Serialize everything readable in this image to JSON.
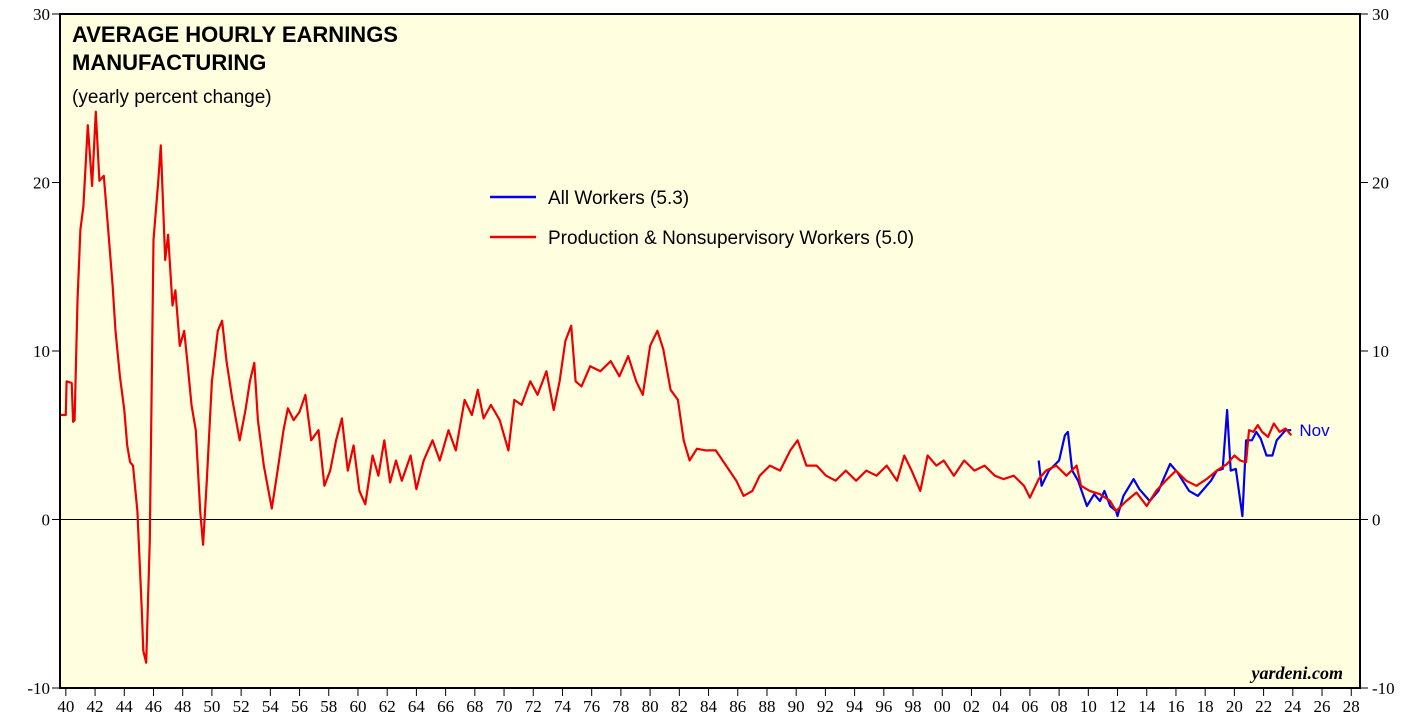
{
  "chart_data": {
    "type": "line",
    "title": [
      "AVERAGE HOURLY EARNINGS",
      "MANUFACTURING"
    ],
    "subtitle": "(yearly percent change)",
    "source": "yardeni.com",
    "end_label": "Nov",
    "background": "#ffffe0",
    "xlim": [
      1939.6,
      2028.6
    ],
    "ylim": [
      -10,
      30
    ],
    "yticks": [
      -10,
      0,
      10,
      20,
      30
    ],
    "xticks": [
      {
        "value": 1940,
        "label": "40"
      },
      {
        "value": 1942,
        "label": "42"
      },
      {
        "value": 1944,
        "label": "44"
      },
      {
        "value": 1946,
        "label": "46"
      },
      {
        "value": 1948,
        "label": "48"
      },
      {
        "value": 1950,
        "label": "50"
      },
      {
        "value": 1952,
        "label": "52"
      },
      {
        "value": 1954,
        "label": "54"
      },
      {
        "value": 1956,
        "label": "56"
      },
      {
        "value": 1958,
        "label": "58"
      },
      {
        "value": 1960,
        "label": "60"
      },
      {
        "value": 1962,
        "label": "62"
      },
      {
        "value": 1964,
        "label": "64"
      },
      {
        "value": 1966,
        "label": "66"
      },
      {
        "value": 1968,
        "label": "68"
      },
      {
        "value": 1970,
        "label": "70"
      },
      {
        "value": 1972,
        "label": "72"
      },
      {
        "value": 1974,
        "label": "74"
      },
      {
        "value": 1976,
        "label": "76"
      },
      {
        "value": 1978,
        "label": "78"
      },
      {
        "value": 1980,
        "label": "80"
      },
      {
        "value": 1982,
        "label": "82"
      },
      {
        "value": 1984,
        "label": "84"
      },
      {
        "value": 1986,
        "label": "86"
      },
      {
        "value": 1988,
        "label": "88"
      },
      {
        "value": 1990,
        "label": "90"
      },
      {
        "value": 1992,
        "label": "92"
      },
      {
        "value": 1994,
        "label": "94"
      },
      {
        "value": 1996,
        "label": "96"
      },
      {
        "value": 1998,
        "label": "98"
      },
      {
        "value": 2000,
        "label": "00"
      },
      {
        "value": 2002,
        "label": "02"
      },
      {
        "value": 2004,
        "label": "04"
      },
      {
        "value": 2006,
        "label": "06"
      },
      {
        "value": 2008,
        "label": "08"
      },
      {
        "value": 2010,
        "label": "10"
      },
      {
        "value": 2012,
        "label": "12"
      },
      {
        "value": 2014,
        "label": "14"
      },
      {
        "value": 2016,
        "label": "16"
      },
      {
        "value": 2018,
        "label": "18"
      },
      {
        "value": 2020,
        "label": "20"
      },
      {
        "value": 2022,
        "label": "22"
      },
      {
        "value": 2024,
        "label": "24"
      },
      {
        "value": 2026,
        "label": "26"
      },
      {
        "value": 2028,
        "label": "28"
      }
    ],
    "series": [
      {
        "name": "All Workers (5.3)",
        "color": "#0000ee",
        "x": [
          2006.6,
          2006.8,
          2007.3,
          2008,
          2008.4,
          2008.6,
          2008.9,
          2009.3,
          2009.9,
          2010.4,
          2010.8,
          2011.1,
          2011.5,
          2011.9,
          2012,
          2012.4,
          2013.1,
          2013.5,
          2014.2,
          2014.8,
          2015.1,
          2015.6,
          2016.1,
          2016.9,
          2017.5,
          2018.4,
          2018.8,
          2019.2,
          2019.5,
          2019.75,
          2020.1,
          2020.55,
          2020.8,
          2021.2,
          2021.5,
          2021.8,
          2022.2,
          2022.6,
          2022.9,
          2023.2,
          2023.5,
          2023.9
        ],
        "values": [
          3.5,
          2,
          2.9,
          3.5,
          5,
          5.2,
          2.9,
          2.3,
          0.8,
          1.5,
          1.1,
          1.7,
          0.8,
          0.5,
          0.2,
          1.4,
          2.4,
          1.8,
          1.1,
          1.7,
          2.3,
          3.3,
          2.8,
          1.7,
          1.4,
          2.3,
          2.9,
          3,
          6.5,
          2.9,
          3,
          0.2,
          4.7,
          4.7,
          5.2,
          4.8,
          3.8,
          3.8,
          4.7,
          5,
          5.3,
          5.3
        ]
      },
      {
        "name": "Production & Nonsupervisory Workers (5.0)",
        "color": "#ee0000",
        "x": [
          1939.6,
          1940,
          1940.05,
          1940.4,
          1940.5,
          1940.6,
          1940.8,
          1941,
          1941.2,
          1941.5,
          1941.8,
          1942.05,
          1942.3,
          1942.6,
          1942.9,
          1943.2,
          1943.4,
          1943.7,
          1944,
          1944.2,
          1944.4,
          1944.6,
          1944.9,
          1945.2,
          1945.3,
          1945.5,
          1945.75,
          1946,
          1946.3,
          1946.5,
          1946.8,
          1947,
          1947.3,
          1947.5,
          1947.8,
          1948.1,
          1948.35,
          1948.6,
          1948.9,
          1949.2,
          1949.4,
          1949.65,
          1950,
          1950.4,
          1950.7,
          1951,
          1951.4,
          1951.9,
          1952.3,
          1952.6,
          1952.9,
          1953.15,
          1953.55,
          1954.1,
          1954.5,
          1954.9,
          1955.2,
          1955.6,
          1956,
          1956.4,
          1956.8,
          1957.3,
          1957.7,
          1958.1,
          1958.5,
          1958.9,
          1959.3,
          1959.7,
          1960.1,
          1960.5,
          1961,
          1961.4,
          1961.8,
          1962.2,
          1962.6,
          1963,
          1963.6,
          1964,
          1964.5,
          1965.1,
          1965.6,
          1966.2,
          1966.7,
          1967.3,
          1967.8,
          1968.2,
          1968.6,
          1969.1,
          1969.7,
          1970.3,
          1970.7,
          1971.2,
          1971.8,
          1972.3,
          1972.9,
          1973.4,
          1973.8,
          1974.2,
          1974.6,
          1974.9,
          1975.3,
          1975.9,
          1976.6,
          1977.3,
          1977.9,
          1978.5,
          1979.05,
          1979.5,
          1980,
          1980.5,
          1980.9,
          1981.4,
          1981.9,
          1982.3,
          1982.7,
          1983.2,
          1983.8,
          1984.5,
          1985.2,
          1985.9,
          1986.4,
          1987,
          1987.5,
          1988.2,
          1988.9,
          1989.6,
          1990.1,
          1990.7,
          1991.4,
          1992.05,
          1992.7,
          1993.4,
          1994.1,
          1994.8,
          1995.5,
          1996.2,
          1996.9,
          1997.4,
          1997.9,
          1998.5,
          1999,
          1999.6,
          2000.1,
          2000.8,
          2001.5,
          2002.2,
          2002.9,
          2003.6,
          2004.2,
          2004.9,
          2005.6,
          2006,
          2006.6,
          2007.1,
          2007.8,
          2008.5,
          2009.2,
          2009.5,
          2010.1,
          2010.8,
          2011.5,
          2011.9,
          2012.6,
          2013.3,
          2014,
          2014.65,
          2015.3,
          2016,
          2016.7,
          2017.4,
          2018.1,
          2018.8,
          2019.5,
          2020,
          2020.4,
          2020.8,
          2021,
          2021.3,
          2021.6,
          2021.9,
          2022.3,
          2022.7,
          2023.1,
          2023.5,
          2023.9
        ],
        "values": [
          6.2,
          6.2,
          8.2,
          8.1,
          5.8,
          5.9,
          13,
          17.2,
          18.6,
          23.4,
          19.8,
          24.2,
          20.1,
          20.4,
          17.2,
          13.9,
          11.2,
          8.5,
          6.5,
          4.4,
          3.4,
          3.2,
          0.5,
          -5.4,
          -7.8,
          -8.5,
          -1.2,
          16.6,
          19.8,
          22.2,
          15.4,
          16.9,
          12.7,
          13.6,
          10.3,
          11.2,
          9.1,
          6.8,
          5.3,
          0.5,
          -1.5,
          2.3,
          8.2,
          11.2,
          11.8,
          9.4,
          7.1,
          4.7,
          6.5,
          8.2,
          9.3,
          5.9,
          3.2,
          0.65,
          2.9,
          5.3,
          6.6,
          5.9,
          6.4,
          7.4,
          4.7,
          5.3,
          2,
          2.9,
          4.7,
          6,
          2.9,
          4.4,
          1.7,
          0.9,
          3.8,
          2.6,
          4.7,
          2.2,
          3.5,
          2.3,
          3.8,
          1.8,
          3.5,
          4.7,
          3.5,
          5.3,
          4.1,
          7.1,
          6.2,
          7.7,
          6,
          6.8,
          5.9,
          4.1,
          7.1,
          6.8,
          8.2,
          7.4,
          8.8,
          6.5,
          8.2,
          10.6,
          11.5,
          8.2,
          7.9,
          9.1,
          8.8,
          9.4,
          8.5,
          9.7,
          8.2,
          7.4,
          10.3,
          11.2,
          10.1,
          7.7,
          7.1,
          4.7,
          3.5,
          4.2,
          4.1,
          4.1,
          3.2,
          2.3,
          1.4,
          1.7,
          2.6,
          3.2,
          2.9,
          4.1,
          4.7,
          3.2,
          3.2,
          2.6,
          2.3,
          2.9,
          2.3,
          2.9,
          2.6,
          3.2,
          2.3,
          3.8,
          2.9,
          1.7,
          3.8,
          3.2,
          3.5,
          2.6,
          3.5,
          2.9,
          3.2,
          2.6,
          2.4,
          2.6,
          2,
          1.3,
          2.4,
          2.9,
          3.2,
          2.6,
          3.2,
          2,
          1.7,
          1.5,
          1.1,
          0.5,
          1.1,
          1.6,
          0.8,
          1.7,
          2.3,
          2.9,
          2.3,
          2,
          2.4,
          2.9,
          3.3,
          3.8,
          3.5,
          3.4,
          5.3,
          5.2,
          5.6,
          5.2,
          4.9,
          5.7,
          5.2,
          5.4,
          5.0
        ]
      }
    ]
  }
}
